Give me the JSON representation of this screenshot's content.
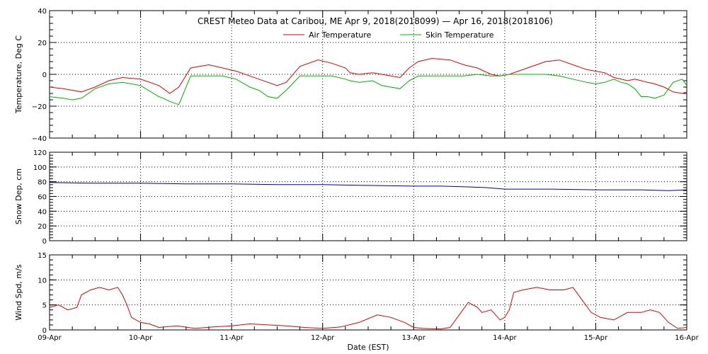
{
  "chart_data": [
    {
      "type": "line",
      "title": "CREST Meteo Data at Caribou, ME   Apr  9, 2018(2018099) — Apr 16, 2018(2018106)",
      "ylabel": "Temperature, Deg C",
      "ylim": [
        -40,
        40
      ],
      "yticks": [
        "40",
        "20",
        "0",
        "−20",
        "−40"
      ],
      "xlim": [
        "2018-04-09",
        "2018-04-16"
      ],
      "grid": true,
      "legend": "top-center",
      "series": [
        {
          "name": "Air Temperature",
          "color": "#e00000",
          "x": [
            0,
            0.15,
            0.25,
            0.35,
            0.5,
            0.65,
            0.8,
            1.0,
            1.2,
            1.25,
            1.32,
            1.42,
            1.55,
            1.75,
            1.9,
            2.05,
            2.2,
            2.3,
            2.4,
            2.5,
            2.6,
            2.75,
            2.95,
            3.1,
            3.25,
            3.3,
            3.4,
            3.55,
            3.65,
            3.85,
            3.95,
            4.05,
            4.2,
            4.4,
            4.55,
            4.7,
            4.85,
            4.95,
            5.05,
            5.15,
            5.25,
            5.35,
            5.45,
            5.6,
            5.75,
            5.9,
            6.0,
            6.1,
            6.2,
            6.28,
            6.35,
            6.43,
            6.5,
            6.57,
            6.65,
            6.75,
            6.85,
            6.95,
            7.0
          ],
          "y": [
            -8,
            -9,
            -10,
            -11,
            -8,
            -4,
            -2,
            -3,
            -7,
            -9,
            -12,
            -8,
            4,
            6,
            4,
            2,
            -1,
            -3,
            -5,
            -7,
            -5,
            5,
            9,
            7,
            4,
            1,
            0,
            1,
            0,
            -2,
            4,
            8,
            10,
            9,
            6,
            4,
            0,
            -1,
            0,
            2,
            4,
            6,
            8,
            9,
            6,
            3,
            2,
            1,
            -2,
            -3,
            -4,
            -3,
            -4,
            -5,
            -6,
            -8,
            -11,
            -12,
            -11
          ],
          "x2": [
            6.95,
            7.0
          ],
          "y2_note": ""
        },
        {
          "name": "Skin Temperature",
          "color": "#00b000",
          "x": [
            0,
            0.15,
            0.25,
            0.35,
            0.5,
            0.65,
            0.8,
            1.0,
            1.2,
            1.25,
            1.32,
            1.42,
            1.55,
            1.75,
            1.9,
            2.05,
            2.2,
            2.3,
            2.4,
            2.5,
            2.6,
            2.75,
            2.95,
            3.1,
            3.25,
            3.3,
            3.4,
            3.55,
            3.65,
            3.85,
            3.95,
            4.05,
            4.2,
            4.4,
            4.55,
            4.7,
            4.85,
            4.95,
            5.05,
            5.15,
            5.25,
            5.35,
            5.45,
            5.6,
            5.75,
            5.9,
            6.0,
            6.1,
            6.2,
            6.28,
            6.35,
            6.43,
            6.5,
            6.57,
            6.65,
            6.75,
            6.85,
            6.95,
            7.0
          ],
          "y": [
            -14,
            -15,
            -16,
            -15,
            -9,
            -6,
            -5,
            -7,
            -14,
            -15,
            -17,
            -19,
            -1,
            -1,
            -1,
            -3,
            -8,
            -10,
            -14,
            -15,
            -10,
            -1,
            -1,
            -1,
            -3,
            -4,
            -5,
            -4,
            -7,
            -9,
            -4,
            -1,
            -1,
            -1,
            -1,
            0,
            -1,
            -1,
            0,
            0,
            0,
            0,
            0,
            -1,
            -3,
            -5,
            -6,
            -5,
            -3,
            -5,
            -6,
            -9,
            -14,
            -14,
            -15,
            -13,
            -5,
            -3,
            -7
          ]
        }
      ]
    },
    {
      "type": "line",
      "ylabel": "Snow Dep, cm",
      "ylim": [
        0,
        120
      ],
      "yticks": [
        "120",
        "100",
        "80",
        "60",
        "40",
        "20",
        "0"
      ],
      "xlim": [
        "2018-04-09",
        "2018-04-16"
      ],
      "grid": true,
      "series": [
        {
          "color": "#000090",
          "x": [
            0,
            0.5,
            1.0,
            1.5,
            2.0,
            2.5,
            3.0,
            3.5,
            4.0,
            4.3,
            4.6,
            4.8,
            5.0,
            5.5,
            6.0,
            6.5,
            6.8,
            7.0
          ],
          "y": [
            79,
            78,
            78,
            77,
            77,
            76,
            76,
            75,
            74,
            74,
            73,
            72,
            70,
            70,
            69,
            69,
            68,
            69
          ]
        }
      ]
    },
    {
      "type": "line",
      "ylabel": "Wind Spd, m/s",
      "xlabel": "Date (EST)",
      "ylim": [
        0,
        15
      ],
      "yticks": [
        "15",
        "10",
        "5",
        "0"
      ],
      "xlim": [
        "2018-04-09",
        "2018-04-16"
      ],
      "x_tick_labels": [
        "09-Apr",
        "10-Apr",
        "11-Apr",
        "12-Apr",
        "13-Apr",
        "14-Apr",
        "15-Apr",
        "16-Apr"
      ],
      "grid": true,
      "series": [
        {
          "color": "#e00000",
          "x": [
            0,
            0.1,
            0.2,
            0.3,
            0.35,
            0.45,
            0.55,
            0.65,
            0.75,
            0.8,
            0.85,
            0.9,
            1.0,
            1.1,
            1.2,
            1.4,
            1.6,
            1.8,
            2.0,
            2.2,
            2.4,
            2.6,
            2.8,
            3.0,
            3.2,
            3.4,
            3.6,
            3.75,
            3.9,
            4.0,
            4.1,
            4.3,
            4.4,
            4.5,
            4.6,
            4.7,
            4.75,
            4.85,
            4.95,
            5.0,
            5.05,
            5.1,
            5.2,
            5.35,
            5.5,
            5.65,
            5.75,
            5.85,
            5.95,
            6.05,
            6.2,
            6.35,
            6.5,
            6.6,
            6.7,
            6.8,
            6.9,
            7.0
          ],
          "y": [
            4.5,
            5,
            4,
            4.5,
            7,
            8,
            8.5,
            8,
            8.5,
            7,
            5,
            2.5,
            1.5,
            1.2,
            0.5,
            0.8,
            0.3,
            0.6,
            0.8,
            1.2,
            1.0,
            0.8,
            0.5,
            0.3,
            0.6,
            1.5,
            3.0,
            2.5,
            1.5,
            0.5,
            0.3,
            0.2,
            0.5,
            3.0,
            5.5,
            4.5,
            3.5,
            4.0,
            2.0,
            2.5,
            4.0,
            7.5,
            8.0,
            8.5,
            8.0,
            8.0,
            8.5,
            6.0,
            3.5,
            2.5,
            2.0,
            3.5,
            3.5,
            4.0,
            3.5,
            1.5,
            0.3,
            0.5
          ]
        }
      ]
    }
  ]
}
